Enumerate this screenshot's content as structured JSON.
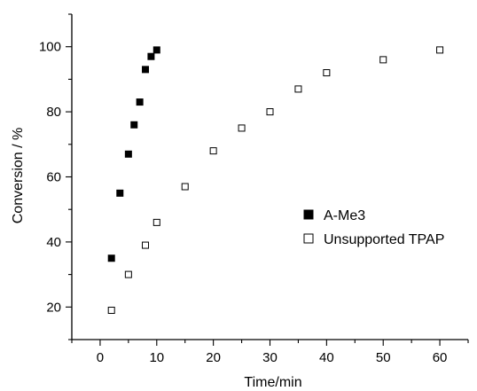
{
  "chart_data": {
    "type": "scatter",
    "xlabel": "Time/min",
    "ylabel": "Conversion / %",
    "xlim": [
      -5,
      65
    ],
    "ylim": [
      10,
      110
    ],
    "xticks": [
      0,
      10,
      20,
      30,
      40,
      50,
      60
    ],
    "yticks": [
      20,
      40,
      60,
      80,
      100
    ],
    "grid": false,
    "legend_position": "right",
    "series": [
      {
        "name": "A-Me3",
        "marker": "filled-square",
        "color": "#000000",
        "x": [
          2,
          3.5,
          5,
          6,
          7,
          8,
          9,
          10
        ],
        "y": [
          35,
          55,
          67,
          76,
          83,
          93,
          97,
          99
        ]
      },
      {
        "name": "Unsupported TPAP",
        "marker": "open-square",
        "color": "#000000",
        "x": [
          2,
          5,
          8,
          10,
          15,
          20,
          25,
          30,
          35,
          40,
          50,
          60
        ],
        "y": [
          19,
          30,
          39,
          46,
          57,
          68,
          75,
          80,
          87,
          92,
          96,
          99
        ]
      }
    ]
  }
}
